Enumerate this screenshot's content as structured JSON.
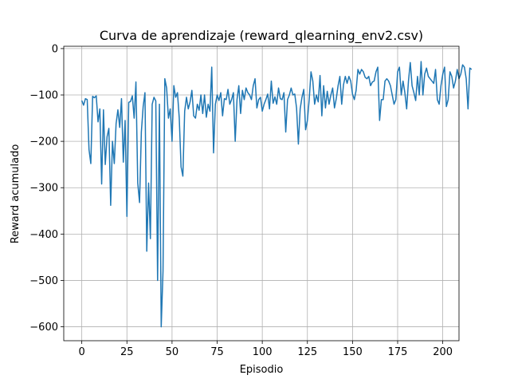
{
  "chart_data": {
    "type": "line",
    "title": "Curva de aprendizaje (reward_qlearning_env2.csv)",
    "xlabel": "Episodio",
    "ylabel": "Reward acumulado",
    "xlim": [
      -10,
      209
    ],
    "ylim": [
      -630,
      5
    ],
    "xticks": [
      0,
      25,
      50,
      75,
      100,
      125,
      150,
      175,
      200
    ],
    "yticks": [
      0,
      -100,
      -200,
      -300,
      -400,
      -500,
      -600
    ],
    "xtick_labels": [
      "0",
      "25",
      "50",
      "75",
      "100",
      "125",
      "150",
      "175",
      "200"
    ],
    "ytick_labels": [
      "0",
      "−100",
      "−200",
      "−300",
      "−400",
      "−500",
      "−600"
    ],
    "grid": true,
    "line_color": "#1f77b4",
    "series": [
      {
        "values": [
          -112,
          -122,
          -108,
          -110,
          -218,
          -248,
          -103,
          -106,
          -102,
          -158,
          -130,
          -292,
          -132,
          -250,
          -190,
          -172,
          -338,
          -200,
          -248,
          -162,
          -132,
          -170,
          -108,
          -245,
          -155,
          -362,
          -116,
          -114,
          -102,
          -150,
          -72,
          -290,
          -332,
          -180,
          -125,
          -95,
          -437,
          -290,
          -410,
          -120,
          -105,
          -113,
          -500,
          -120,
          -600,
          -480,
          -65,
          -85,
          -150,
          -130,
          -200,
          -80,
          -105,
          -95,
          -150,
          -255,
          -275,
          -135,
          -105,
          -130,
          -115,
          -90,
          -145,
          -150,
          -120,
          -133,
          -100,
          -140,
          -100,
          -148,
          -120,
          -135,
          -40,
          -225,
          -120,
          -100,
          -112,
          -95,
          -145,
          -108,
          -110,
          -88,
          -120,
          -110,
          -95,
          -200,
          -110,
          -80,
          -140,
          -90,
          -110,
          -85,
          -95,
          -100,
          -110,
          -80,
          -65,
          -128,
          -110,
          -105,
          -135,
          -120,
          -110,
          -98,
          -130,
          -70,
          -118,
          -104,
          -120,
          -85,
          -108,
          -110,
          -95,
          -180,
          -110,
          -100,
          -85,
          -100,
          -98,
          -128,
          -206,
          -130,
          -105,
          -88,
          -175,
          -155,
          -110,
          -50,
          -70,
          -120,
          -100,
          -115,
          -58,
          -145,
          -80,
          -128,
          -92,
          -120,
          -100,
          -85,
          -128,
          -108,
          -80,
          -60,
          -120,
          -78,
          -60,
          -75,
          -60,
          -70,
          -98,
          -110,
          -90,
          -45,
          -55,
          -45,
          -50,
          -62,
          -65,
          -60,
          -80,
          -72,
          -70,
          -50,
          -40,
          -155,
          -110,
          -110,
          -70,
          -65,
          -70,
          -80,
          -100,
          -120,
          -110,
          -50,
          -40,
          -100,
          -70,
          -95,
          -130,
          -70,
          -30,
          -80,
          -95,
          -112,
          -60,
          -100,
          -28,
          -100,
          -55,
          -42,
          -60,
          -65,
          -70,
          -75,
          -45,
          -110,
          -120,
          -80,
          -55,
          -40,
          -125,
          -110,
          -50,
          -60,
          -85,
          -70,
          -45,
          -65,
          -55,
          -35,
          -40,
          -65,
          -130,
          -42,
          -45
        ]
      }
    ]
  }
}
